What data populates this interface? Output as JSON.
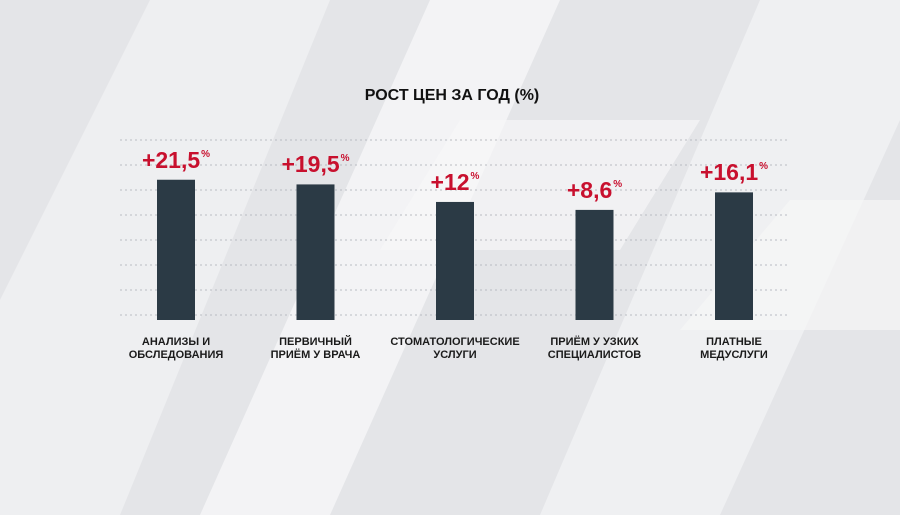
{
  "chart_data": {
    "type": "bar",
    "title": "РОСТ ЦЕН ЗА ГОД (%)",
    "categories": [
      "АНАЛИЗЫ И\nОБСЛЕДОВАНИЯ",
      "ПЕРВИЧНЫЙ\nПРИЁМ У ВРАЧА",
      "СТОМАТОЛОГИЧЕСКИЕ\nУСЛУГИ",
      "ПРИЁМ У УЗКИХ\nСПЕЦИАЛИСТОВ",
      "ПЛАТНЫЕ\nМЕДУСЛУГИ"
    ],
    "values": [
      21.5,
      19.5,
      12,
      8.6,
      16.1
    ],
    "value_labels": [
      "+21,5%",
      "+19,5%",
      "+12%",
      "+8,6%",
      "+16,1%"
    ],
    "color": "#2b3a45",
    "ylim": [
      -38.5,
      38.5
    ]
  }
}
